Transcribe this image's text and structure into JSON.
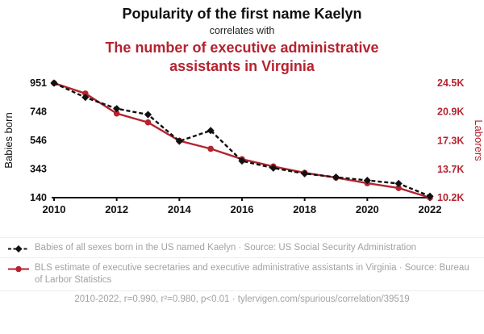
{
  "header": {
    "title": "Popularity of the first name Kaelyn",
    "subtitle": "correlates with",
    "red_title": "The number of executive administrative assistants in Virginia"
  },
  "colors": {
    "black_series": "#111111",
    "red_series": "#b5232f",
    "legend_text": "#a2a2a2"
  },
  "chart_data": {
    "type": "line",
    "title": "Popularity of the first name Kaelyn correlates with The number of executive administrative assistants in Virginia",
    "x": [
      2010,
      2011,
      2012,
      2013,
      2014,
      2015,
      2016,
      2017,
      2018,
      2019,
      2020,
      2021,
      2022
    ],
    "x_ticks": [
      2010,
      2012,
      2014,
      2016,
      2018,
      2020,
      2022
    ],
    "left_axis": {
      "label": "Babies born",
      "ticks": [
        "951",
        "748",
        "546",
        "343",
        "140"
      ],
      "tick_values": [
        951,
        748,
        546,
        343,
        140
      ],
      "range": [
        140,
        951
      ]
    },
    "right_axis": {
      "label": "Laborers",
      "ticks": [
        "24.5K",
        "20.9K",
        "17.3K",
        "13.7K",
        "10.2K"
      ],
      "tick_values": [
        24500,
        20900,
        17300,
        13700,
        10200
      ],
      "range": [
        10200,
        24500
      ]
    },
    "series": [
      {
        "name": "Babies of all sexes born in the US named Kaelyn",
        "axis": "left",
        "color": "#111111",
        "style": "dashed-diamond",
        "values": [
          951,
          850,
          770,
          728,
          540,
          615,
          400,
          350,
          310,
          285,
          262,
          240,
          150
        ]
      },
      {
        "name": "BLS estimate of executive secretaries and executive administrative assistants in Virginia",
        "axis": "right",
        "color": "#b5232f",
        "style": "solid-circle",
        "values": [
          24500,
          23200,
          20700,
          19600,
          17300,
          16300,
          15000,
          14100,
          13300,
          12700,
          12000,
          11400,
          10200
        ]
      }
    ],
    "legend_position": "bottom",
    "grid": false
  },
  "legend": [
    {
      "series": "black",
      "text": "Babies of all sexes born in the US named Kaelyn · Source: US Social Security Administration"
    },
    {
      "series": "red",
      "text": "BLS estimate of executive secretaries and executive administrative assistants in Virginia · Source: Bureau of Larbor Statistics"
    }
  ],
  "footer": "2010-2022, r=0.990, r²=0.980, p<0.01 · tylervigen.com/spurious/correlation/39519"
}
